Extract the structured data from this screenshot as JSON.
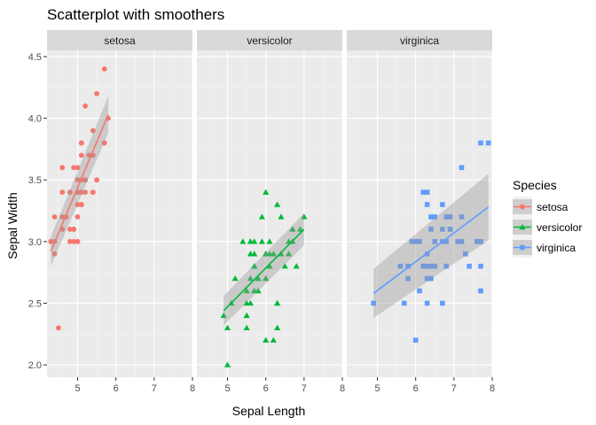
{
  "chart_data": {
    "type": "scatter",
    "title": "Scatterplot with smoothers",
    "xlabel": "Sepal Length",
    "ylabel": "Sepal Width",
    "xlim": [
      4.2,
      8.0
    ],
    "ylim": [
      1.9,
      4.55
    ],
    "x_ticks": [
      5,
      6,
      7,
      8
    ],
    "y_ticks": [
      2.0,
      2.5,
      3.0,
      3.5,
      4.0,
      4.5
    ],
    "y_tick_labels": [
      "2.0",
      "2.5",
      "3.0",
      "3.5",
      "4.0",
      "4.5"
    ],
    "grid": true,
    "facet_by": "Species",
    "legend": {
      "title": "Species",
      "position": "right"
    },
    "series": [
      {
        "name": "setosa",
        "color": "#F8766D",
        "shape": "circle",
        "smoother": {
          "type": "linear",
          "x": [
            4.3,
            5.8
          ],
          "y": [
            2.92,
            4.03
          ],
          "band": [
            0.12,
            0.15
          ]
        },
        "points": [
          [
            4.3,
            3.0
          ],
          [
            4.4,
            2.9
          ],
          [
            4.4,
            3.0
          ],
          [
            4.4,
            3.2
          ],
          [
            4.5,
            2.3
          ],
          [
            4.6,
            3.1
          ],
          [
            4.6,
            3.2
          ],
          [
            4.6,
            3.4
          ],
          [
            4.6,
            3.6
          ],
          [
            4.7,
            3.2
          ],
          [
            4.8,
            3.0
          ],
          [
            4.8,
            3.1
          ],
          [
            4.8,
            3.4
          ],
          [
            4.9,
            3.0
          ],
          [
            4.9,
            3.1
          ],
          [
            4.9,
            3.6
          ],
          [
            5.0,
            3.0
          ],
          [
            5.0,
            3.2
          ],
          [
            5.0,
            3.3
          ],
          [
            5.0,
            3.4
          ],
          [
            5.0,
            3.5
          ],
          [
            5.0,
            3.6
          ],
          [
            5.1,
            3.3
          ],
          [
            5.1,
            3.4
          ],
          [
            5.1,
            3.5
          ],
          [
            5.1,
            3.7
          ],
          [
            5.1,
            3.8
          ],
          [
            5.2,
            3.4
          ],
          [
            5.2,
            3.5
          ],
          [
            5.2,
            4.1
          ],
          [
            5.3,
            3.7
          ],
          [
            5.4,
            3.4
          ],
          [
            5.4,
            3.7
          ],
          [
            5.4,
            3.9
          ],
          [
            5.5,
            3.5
          ],
          [
            5.5,
            4.2
          ],
          [
            5.7,
            3.8
          ],
          [
            5.7,
            4.4
          ],
          [
            5.8,
            4.0
          ],
          [
            5.0,
            3.4
          ],
          [
            4.9,
            3.1
          ],
          [
            5.2,
            3.5
          ],
          [
            5.1,
            3.5
          ],
          [
            5.1,
            3.8
          ],
          [
            4.8,
            3.4
          ],
          [
            5.4,
            3.4
          ],
          [
            4.6,
            3.4
          ],
          [
            5.0,
            3.5
          ],
          [
            5.7,
            3.8
          ],
          [
            5.1,
            3.3
          ]
        ]
      },
      {
        "name": "versicolor",
        "color": "#00BA38",
        "shape": "triangle",
        "smoother": {
          "type": "linear",
          "x": [
            4.9,
            7.0
          ],
          "y": [
            2.44,
            3.1
          ],
          "band": [
            0.12,
            0.13
          ]
        },
        "points": [
          [
            4.9,
            2.4
          ],
          [
            5.0,
            2.0
          ],
          [
            5.0,
            2.3
          ],
          [
            5.1,
            2.5
          ],
          [
            5.2,
            2.7
          ],
          [
            5.4,
            3.0
          ],
          [
            5.5,
            2.3
          ],
          [
            5.5,
            2.4
          ],
          [
            5.5,
            2.5
          ],
          [
            5.5,
            2.6
          ],
          [
            5.6,
            2.5
          ],
          [
            5.6,
            2.7
          ],
          [
            5.6,
            2.9
          ],
          [
            5.6,
            3.0
          ],
          [
            5.7,
            2.6
          ],
          [
            5.7,
            2.8
          ],
          [
            5.7,
            2.9
          ],
          [
            5.7,
            3.0
          ],
          [
            5.8,
            2.6
          ],
          [
            5.8,
            2.7
          ],
          [
            5.9,
            3.0
          ],
          [
            5.9,
            3.2
          ],
          [
            6.0,
            2.2
          ],
          [
            6.0,
            2.7
          ],
          [
            6.0,
            2.9
          ],
          [
            6.0,
            3.4
          ],
          [
            6.1,
            2.8
          ],
          [
            6.1,
            2.9
          ],
          [
            6.1,
            3.0
          ],
          [
            6.2,
            2.2
          ],
          [
            6.2,
            2.9
          ],
          [
            6.3,
            2.3
          ],
          [
            6.3,
            2.5
          ],
          [
            6.3,
            3.3
          ],
          [
            6.4,
            2.9
          ],
          [
            6.4,
            3.2
          ],
          [
            6.5,
            2.8
          ],
          [
            6.6,
            2.9
          ],
          [
            6.6,
            3.0
          ],
          [
            6.7,
            3.0
          ],
          [
            6.7,
            3.1
          ],
          [
            6.8,
            2.8
          ],
          [
            6.9,
            3.1
          ],
          [
            7.0,
            3.2
          ],
          [
            5.7,
            2.8
          ],
          [
            6.1,
            2.8
          ],
          [
            5.8,
            2.7
          ],
          [
            5.6,
            3.0
          ],
          [
            6.0,
            2.9
          ],
          [
            6.3,
            2.5
          ]
        ]
      },
      {
        "name": "virginica",
        "color": "#619CFF",
        "shape": "square",
        "smoother": {
          "type": "linear",
          "x": [
            4.9,
            7.9
          ],
          "y": [
            2.58,
            3.28
          ],
          "band": [
            0.2,
            0.27
          ]
        },
        "points": [
          [
            4.9,
            2.5
          ],
          [
            5.6,
            2.8
          ],
          [
            5.7,
            2.5
          ],
          [
            5.8,
            2.7
          ],
          [
            5.8,
            2.8
          ],
          [
            6.0,
            2.2
          ],
          [
            6.0,
            3.0
          ],
          [
            6.1,
            2.6
          ],
          [
            6.1,
            3.0
          ],
          [
            6.2,
            2.8
          ],
          [
            6.2,
            3.4
          ],
          [
            6.3,
            2.5
          ],
          [
            6.3,
            2.7
          ],
          [
            6.3,
            2.8
          ],
          [
            6.3,
            2.9
          ],
          [
            6.3,
            3.3
          ],
          [
            6.3,
            3.4
          ],
          [
            6.4,
            2.7
          ],
          [
            6.4,
            2.8
          ],
          [
            6.4,
            3.1
          ],
          [
            6.4,
            3.2
          ],
          [
            6.5,
            3.0
          ],
          [
            6.5,
            3.2
          ],
          [
            6.7,
            2.5
          ],
          [
            6.7,
            3.0
          ],
          [
            6.7,
            3.1
          ],
          [
            6.7,
            3.3
          ],
          [
            6.8,
            3.0
          ],
          [
            6.8,
            3.2
          ],
          [
            6.9,
            3.1
          ],
          [
            6.9,
            3.2
          ],
          [
            7.1,
            3.0
          ],
          [
            7.2,
            3.0
          ],
          [
            7.2,
            3.2
          ],
          [
            7.2,
            3.6
          ],
          [
            7.3,
            2.9
          ],
          [
            7.4,
            2.8
          ],
          [
            7.6,
            3.0
          ],
          [
            7.7,
            2.6
          ],
          [
            7.7,
            2.8
          ],
          [
            7.7,
            3.0
          ],
          [
            7.7,
            3.8
          ],
          [
            7.9,
            3.8
          ],
          [
            6.5,
            2.8
          ],
          [
            5.9,
            3.0
          ],
          [
            6.8,
            2.8
          ],
          [
            6.2,
            2.8
          ],
          [
            6.5,
            2.8
          ],
          [
            6.0,
            3.0
          ],
          [
            6.9,
            3.1
          ]
        ]
      }
    ]
  }
}
